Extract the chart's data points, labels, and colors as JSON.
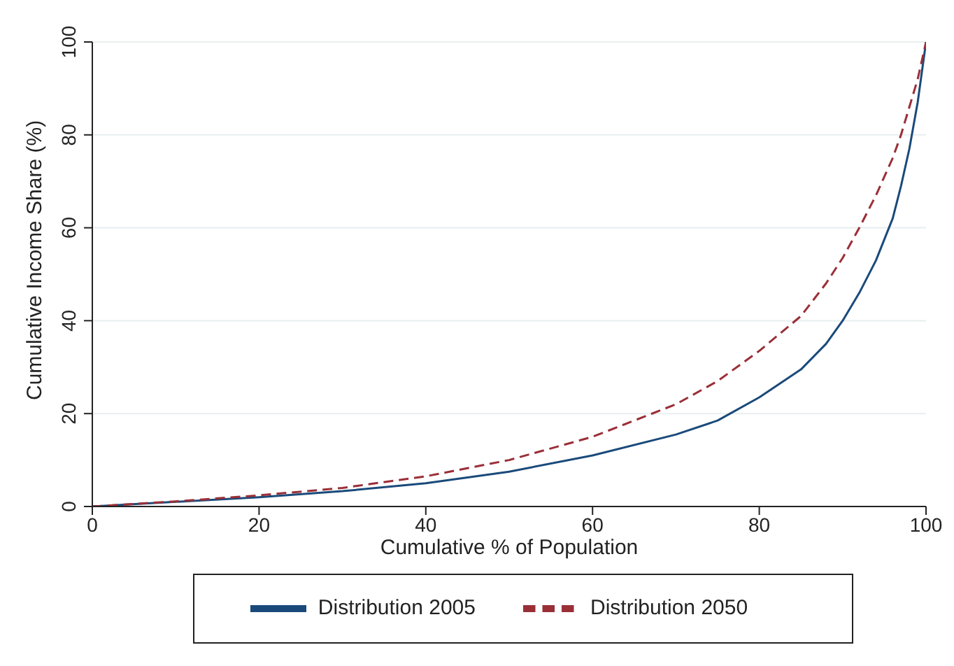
{
  "chart_data": {
    "type": "line",
    "xlabel": "Cumulative % of Population",
    "ylabel": "Cumulative Income Share (%)",
    "xlim": [
      0,
      100
    ],
    "xticks": [
      0,
      20,
      40,
      60,
      80,
      100
    ],
    "ylim": [
      0,
      100
    ],
    "yticks": [
      0,
      20,
      40,
      60,
      80,
      100
    ],
    "grid": "y",
    "legend": "bottom",
    "marker": "none",
    "x": [
      0,
      10,
      20,
      30,
      40,
      50,
      60,
      70,
      75,
      80,
      85,
      88,
      90,
      92,
      94,
      96,
      97,
      98,
      99,
      100
    ],
    "series": [
      {
        "name": "Distribution 2005",
        "color": "#1a4a7a",
        "line_style": "solid",
        "values": [
          0,
          1,
          2,
          3.3,
          5,
          7.5,
          11,
          15.5,
          18.5,
          23.5,
          29.5,
          35,
          40,
          46,
          53,
          62,
          69,
          77,
          87,
          100
        ]
      },
      {
        "name": "Distribution 2050",
        "color": "#9a2f38",
        "line_style": "dashed",
        "values": [
          0,
          1.1,
          2.4,
          4,
          6.5,
          10,
          15,
          22,
          27,
          33.5,
          41,
          48,
          53.5,
          60,
          67,
          75,
          80,
          86,
          92,
          100
        ]
      }
    ]
  }
}
